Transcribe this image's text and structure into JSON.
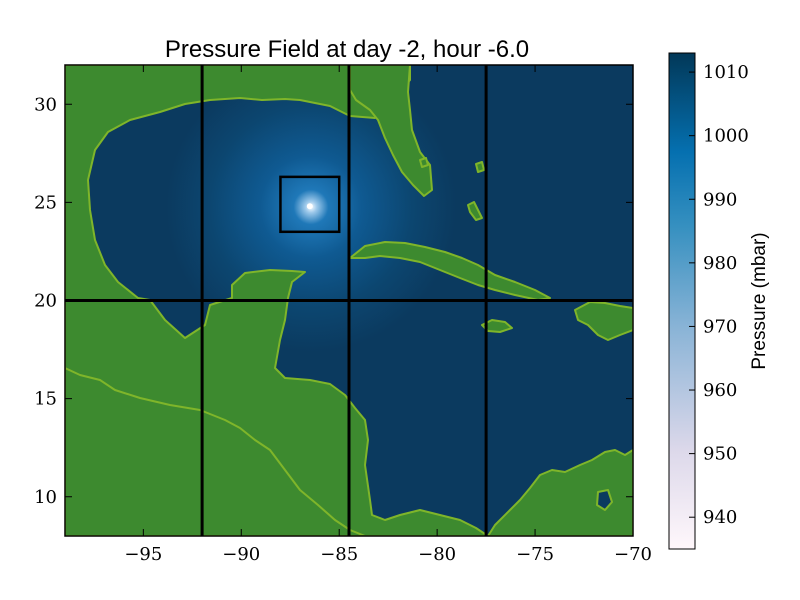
{
  "title": "Pressure Field at day -2, hour -6.0",
  "colorbar": {
    "label": "Pressure (mbar)",
    "ticks": [
      "940",
      "950",
      "960",
      "970",
      "980",
      "990",
      "1000",
      "1010"
    ],
    "range": [
      935,
      1013
    ]
  },
  "map": {
    "x_range": [
      -99,
      -70
    ],
    "y_range": [
      8,
      32
    ],
    "x_ticks": [
      "−95",
      "−90",
      "−85",
      "−80",
      "−75",
      "−70"
    ],
    "x_tick_values": [
      -95,
      -90,
      -85,
      -80,
      -75,
      -70
    ],
    "y_ticks": [
      "10",
      "15",
      "20",
      "25",
      "30"
    ],
    "y_tick_values": [
      10,
      15,
      20,
      25,
      30
    ],
    "grid_lines_lon": [
      -92,
      -84.5,
      -77.5
    ],
    "grid_line_lat": 20,
    "storm_center": [
      -86.5,
      24.8
    ],
    "storm_box": {
      "lon": [
        -88,
        -85
      ],
      "lat": [
        23.5,
        26.3
      ]
    },
    "min_pressure_mbar": 935,
    "ambient_pressure_mbar": 1012,
    "land_color": "#3d8a2f",
    "ocean_color": "#0b3a5f"
  }
}
